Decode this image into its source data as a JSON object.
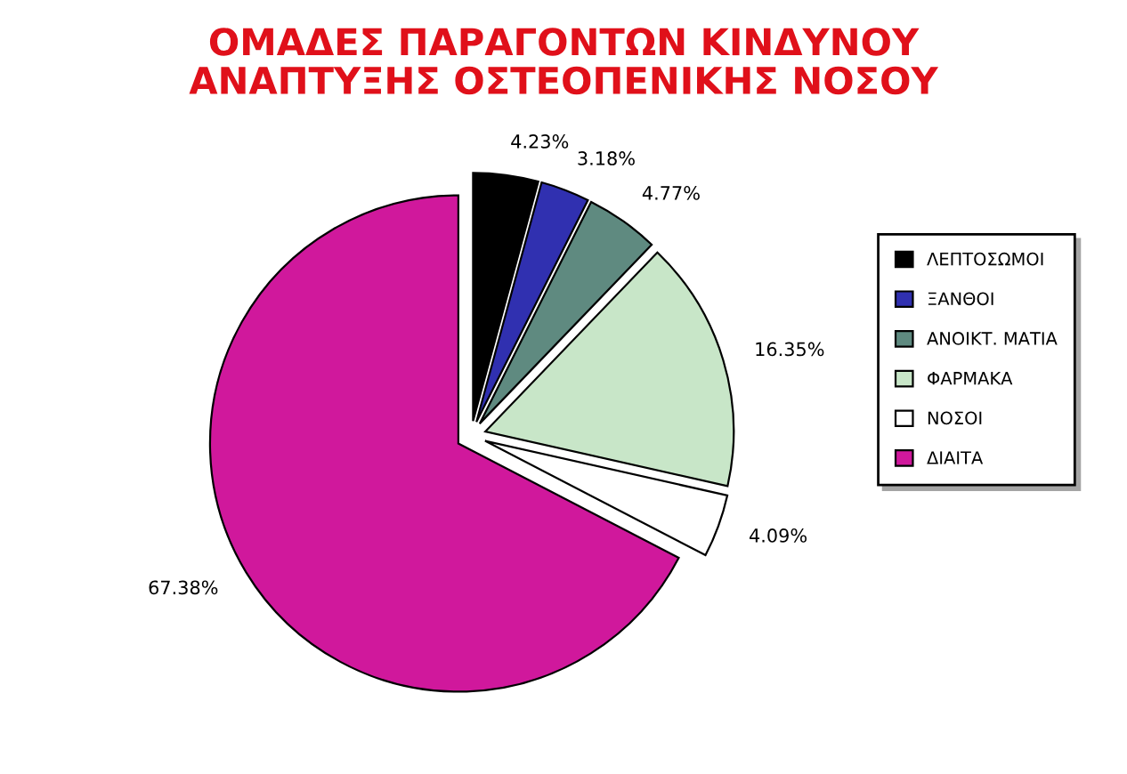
{
  "chart_data": {
    "type": "pie",
    "title": "ΟΜΑΔΕΣ ΠΑΡΑΓΟΝΤΩΝ ΚΙΝΔΥΝΟΥ\nΑΝΑΠΤΥΞΗΣ ΟΣΤΕΟΠΕΝΙΚΗΣ ΝΟΣΟΥ",
    "categories": [
      "ΛΕΠΤΟΣΩΜΟΙ",
      "ΞΑΝΘΟΙ",
      "ΑΝΟΙΚΤ. ΜΑΤΙΑ",
      "ΦΑΡΜΑΚΑ",
      "ΝΟΣΟΙ",
      "ΔΙΑΙΤΑ"
    ],
    "values": [
      4.23,
      3.18,
      4.77,
      16.35,
      4.09,
      67.38
    ],
    "colors": [
      "#000000",
      "#3030b0",
      "#5f8a80",
      "#c8e6c8",
      "#ffffff",
      "#d0189c"
    ],
    "value_labels": [
      "4.23%",
      "3.18%",
      "4.77%",
      "16.35%",
      "4.09%",
      "67.38%"
    ],
    "legend": "right"
  }
}
